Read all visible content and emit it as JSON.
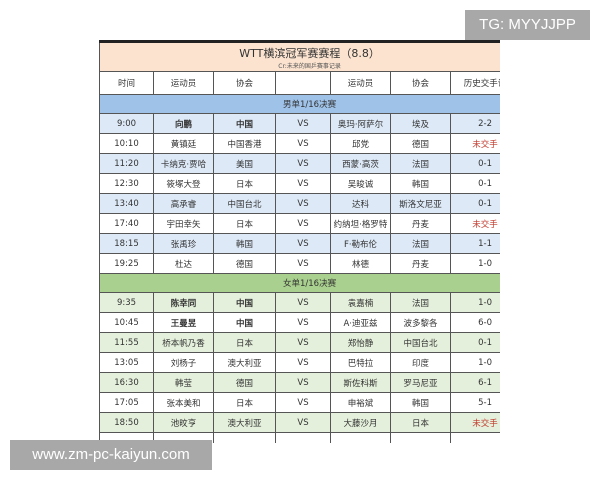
{
  "title": "WTT横滨冠军赛赛程（8.8）",
  "subtitle": "Cr:未来的国乒赛事记录",
  "headers": [
    "时间",
    "运动员",
    "协会",
    "",
    "运动员",
    "协会",
    "历史交手记"
  ],
  "men": {
    "label": "男单1/16决赛",
    "rows": [
      [
        "9:00",
        "向鹏",
        "中国",
        "VS",
        "奥玛·阿萨尔",
        "埃及",
        "2-2"
      ],
      [
        "10:10",
        "黄镇廷",
        "中国香港",
        "VS",
        "邱党",
        "德国",
        "未交手"
      ],
      [
        "11:20",
        "卡纳克·贾哈",
        "美国",
        "VS",
        "西蒙·高茨",
        "法国",
        "0-1"
      ],
      [
        "12:30",
        "筱塚大登",
        "日本",
        "VS",
        "吴晙诚",
        "韩国",
        "0-1"
      ],
      [
        "13:40",
        "高承睿",
        "中国台北",
        "VS",
        "达科",
        "斯洛文尼亚",
        "0-1"
      ],
      [
        "17:40",
        "宇田幸矢",
        "日本",
        "VS",
        "约纳坦·格罗特",
        "丹麦",
        "未交手"
      ],
      [
        "18:15",
        "张禹珍",
        "韩国",
        "VS",
        "F·勒布伦",
        "法国",
        "1-1"
      ],
      [
        "19:25",
        "杜达",
        "德国",
        "VS",
        "林德",
        "丹麦",
        "1-0"
      ]
    ]
  },
  "women": {
    "label": "女单1/16决赛",
    "rows": [
      [
        "9:35",
        "陈幸同",
        "中国",
        "VS",
        "袁嘉楠",
        "法国",
        "1-0"
      ],
      [
        "10:45",
        "王曼昱",
        "中国",
        "VS",
        "A·迪亚兹",
        "波多黎各",
        "6-0"
      ],
      [
        "11:55",
        "桥本帆乃香",
        "日本",
        "VS",
        "郑怡静",
        "中国台北",
        "0-1"
      ],
      [
        "13:05",
        "刘杨子",
        "澳大利亚",
        "VS",
        "巴特拉",
        "印度",
        "1-0"
      ],
      [
        "16:30",
        "韩莹",
        "德国",
        "VS",
        "斯佐科斯",
        "罗马尼亚",
        "6-1"
      ],
      [
        "17:05",
        "张本美和",
        "日本",
        "VS",
        "申裕斌",
        "韩国",
        "5-1"
      ],
      [
        "18:50",
        "池旼亨",
        "澳大利亚",
        "VS",
        "大藤沙月",
        "日本",
        "未交手"
      ]
    ]
  },
  "colors": {
    "men_section": "#9fc2e8",
    "women_section": "#a9d08e",
    "title_bg": "#fbe3cf",
    "no_match": "#c0392b"
  },
  "watermark_tg": "TG: MYYJJPP",
  "watermark_site": "www.zm-pc-kaiyun.com"
}
